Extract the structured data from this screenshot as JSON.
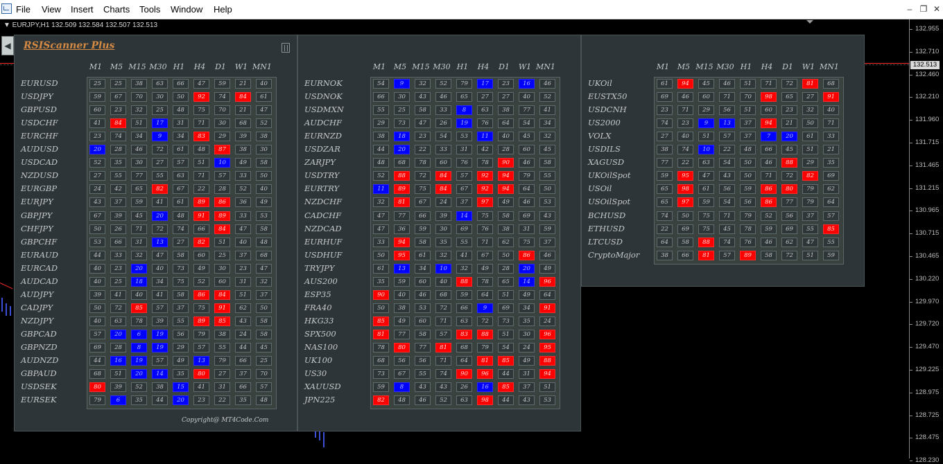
{
  "menu": {
    "items": [
      "File",
      "View",
      "Insert",
      "Charts",
      "Tools",
      "Window",
      "Help"
    ],
    "window_buttons": [
      "–",
      "❐",
      "✕"
    ]
  },
  "chart": {
    "header": "▼ EURJPY,H1  132.509 132.584 132.507 132.513",
    "current_price": "132.513",
    "price_labels": [
      "132.955",
      "132.710",
      "132.460",
      "132.210",
      "131.960",
      "131.715",
      "131.465",
      "131.215",
      "130.965",
      "130.715",
      "130.465",
      "130.220",
      "129.970",
      "129.720",
      "129.470",
      "129.225",
      "128.975",
      "128.725",
      "128.475",
      "128.230"
    ],
    "colors": {
      "background": "#000000",
      "candle": "#3d4fd6",
      "price_line": "#ff2a2a"
    }
  },
  "scanner": {
    "title": "RSIScanner Plus",
    "copyright": "Copyright@ MT4Code.Com",
    "timeframes": [
      "M1",
      "M5",
      "M15",
      "M30",
      "H1",
      "H4",
      "D1",
      "W1",
      "MN1"
    ],
    "colors": {
      "panel": "#2d3538",
      "overbought": "#ff0000",
      "oversold": "#0000ff",
      "text": "#c6c9c9",
      "title": "#d58a43"
    },
    "thresholds": {
      "overbought": 80,
      "oversold": 20
    },
    "panels": [
      {
        "rows": [
          {
            "symbol": "EURUSD",
            "values": [
              25,
              25,
              38,
              63,
              66,
              47,
              59,
              21,
              40
            ]
          },
          {
            "symbol": "USDJPY",
            "values": [
              59,
              67,
              70,
              30,
              50,
              92,
              74,
              84,
              61
            ]
          },
          {
            "symbol": "GBPUSD",
            "values": [
              60,
              23,
              32,
              25,
              48,
              75,
              70,
              21,
              47
            ]
          },
          {
            "symbol": "USDCHF",
            "values": [
              41,
              84,
              51,
              17,
              31,
              71,
              30,
              68,
              52
            ]
          },
          {
            "symbol": "EURCHF",
            "values": [
              23,
              74,
              34,
              9,
              34,
              83,
              29,
              39,
              38
            ]
          },
          {
            "symbol": "AUDUSD",
            "values": [
              20,
              28,
              46,
              72,
              61,
              48,
              87,
              38,
              30
            ]
          },
          {
            "symbol": "USDCAD",
            "values": [
              52,
              35,
              30,
              27,
              57,
              51,
              10,
              49,
              58
            ]
          },
          {
            "symbol": "NZDUSD",
            "values": [
              27,
              55,
              77,
              55,
              63,
              71,
              57,
              33,
              50
            ]
          },
          {
            "symbol": "EURGBP",
            "values": [
              24,
              42,
              65,
              82,
              67,
              22,
              28,
              52,
              40
            ]
          },
          {
            "symbol": "EURJPY",
            "values": [
              43,
              37,
              59,
              41,
              61,
              89,
              86,
              36,
              49
            ]
          },
          {
            "symbol": "GBPJPY",
            "values": [
              67,
              39,
              45,
              20,
              48,
              91,
              89,
              33,
              53
            ]
          },
          {
            "symbol": "CHFJPY",
            "values": [
              50,
              26,
              71,
              72,
              74,
              66,
              84,
              47,
              58
            ]
          },
          {
            "symbol": "GBPCHF",
            "values": [
              53,
              66,
              31,
              13,
              27,
              82,
              51,
              40,
              48
            ]
          },
          {
            "symbol": "EURAUD",
            "values": [
              44,
              33,
              32,
              47,
              58,
              60,
              25,
              37,
              68
            ]
          },
          {
            "symbol": "EURCAD",
            "values": [
              40,
              23,
              20,
              40,
              73,
              49,
              30,
              23,
              47
            ]
          },
          {
            "symbol": "AUDCAD",
            "values": [
              40,
              25,
              18,
              34,
              75,
              52,
              60,
              31,
              32
            ]
          },
          {
            "symbol": "AUDJPY",
            "values": [
              39,
              41,
              40,
              41,
              58,
              86,
              84,
              51,
              37
            ]
          },
          {
            "symbol": "CADJPY",
            "values": [
              50,
              72,
              85,
              57,
              37,
              75,
              91,
              62,
              50
            ]
          },
          {
            "symbol": "NZDJPY",
            "values": [
              40,
              63,
              78,
              39,
              55,
              89,
              85,
              43,
              58
            ]
          },
          {
            "symbol": "GBPCAD",
            "values": [
              57,
              20,
              6,
              19,
              56,
              79,
              38,
              24,
              58
            ]
          },
          {
            "symbol": "GBPNZD",
            "values": [
              69,
              28,
              8,
              19,
              29,
              57,
              55,
              44,
              45
            ]
          },
          {
            "symbol": "AUDNZD",
            "values": [
              44,
              16,
              19,
              57,
              49,
              13,
              79,
              66,
              25
            ]
          },
          {
            "symbol": "GBPAUD",
            "values": [
              68,
              51,
              20,
              14,
              35,
              80,
              27,
              37,
              70
            ]
          },
          {
            "symbol": "USDSEK",
            "values": [
              80,
              39,
              52,
              38,
              15,
              41,
              31,
              66,
              57
            ]
          },
          {
            "symbol": "EURSEK",
            "values": [
              79,
              6,
              35,
              44,
              20,
              23,
              22,
              35,
              48
            ]
          }
        ]
      },
      {
        "rows": [
          {
            "symbol": "EURNOK",
            "values": [
              54,
              9,
              32,
              52,
              79,
              17,
              23,
              16,
              46
            ]
          },
          {
            "symbol": "USDNOK",
            "values": [
              66,
              30,
              43,
              46,
              65,
              27,
              27,
              40,
              52
            ]
          },
          {
            "symbol": "USDMXN",
            "values": [
              55,
              25,
              58,
              33,
              8,
              63,
              38,
              77,
              41
            ]
          },
          {
            "symbol": "AUDCHF",
            "values": [
              29,
              73,
              47,
              26,
              19,
              76,
              64,
              54,
              34
            ]
          },
          {
            "symbol": "EURNZD",
            "values": [
              38,
              18,
              23,
              54,
              53,
              11,
              40,
              45,
              32
            ]
          },
          {
            "symbol": "USDZAR",
            "values": [
              44,
              20,
              22,
              33,
              31,
              42,
              28,
              60,
              45
            ]
          },
          {
            "symbol": "ZARJPY",
            "values": [
              48,
              68,
              78,
              60,
              76,
              78,
              90,
              46,
              58
            ]
          },
          {
            "symbol": "USDTRY",
            "values": [
              52,
              88,
              72,
              84,
              57,
              92,
              94,
              79,
              55
            ]
          },
          {
            "symbol": "EURTRY",
            "values": [
              11,
              89,
              75,
              84,
              67,
              92,
              94,
              64,
              50
            ]
          },
          {
            "symbol": "NZDCHF",
            "values": [
              32,
              81,
              67,
              24,
              37,
              97,
              49,
              46,
              53
            ]
          },
          {
            "symbol": "CADCHF",
            "values": [
              47,
              77,
              66,
              39,
              14,
              75,
              58,
              69,
              43
            ]
          },
          {
            "symbol": "NZDCAD",
            "values": [
              47,
              36,
              59,
              30,
              69,
              76,
              38,
              31,
              59
            ]
          },
          {
            "symbol": "EURHUF",
            "values": [
              33,
              94,
              58,
              35,
              55,
              71,
              62,
              75,
              37
            ]
          },
          {
            "symbol": "USDHUF",
            "values": [
              50,
              95,
              61,
              32,
              41,
              67,
              50,
              86,
              46
            ]
          },
          {
            "symbol": "TRYJPY",
            "values": [
              61,
              13,
              34,
              10,
              32,
              49,
              28,
              20,
              49
            ]
          },
          {
            "symbol": "AUS200",
            "values": [
              35,
              59,
              60,
              40,
              88,
              78,
              65,
              14,
              96
            ]
          },
          {
            "symbol": "ESP35",
            "values": [
              90,
              40,
              46,
              68,
              59,
              64,
              51,
              49,
              64
            ]
          },
          {
            "symbol": "FRA40",
            "values": [
              50,
              38,
              53,
              72,
              66,
              9,
              69,
              34,
              91
            ]
          },
          {
            "symbol": "HKG33",
            "values": [
              85,
              49,
              60,
              71,
              63,
              72,
              73,
              35,
              24
            ]
          },
          {
            "symbol": "SPX500",
            "values": [
              81,
              77,
              58,
              57,
              83,
              88,
              51,
              30,
              96
            ]
          },
          {
            "symbol": "NAS100",
            "values": [
              78,
              80,
              77,
              81,
              68,
              79,
              54,
              24,
              95
            ]
          },
          {
            "symbol": "UK100",
            "values": [
              68,
              56,
              56,
              71,
              64,
              81,
              85,
              49,
              88
            ]
          },
          {
            "symbol": "US30",
            "values": [
              73,
              67,
              55,
              74,
              90,
              96,
              44,
              31,
              94
            ]
          },
          {
            "symbol": "XAUUSD",
            "values": [
              59,
              8,
              43,
              43,
              26,
              16,
              85,
              37,
              51
            ]
          },
          {
            "symbol": "JPN225",
            "values": [
              82,
              48,
              46,
              52,
              63,
              98,
              44,
              43,
              53
            ]
          }
        ]
      },
      {
        "rows": [
          {
            "symbol": "UKOil",
            "values": [
              61,
              94,
              45,
              46,
              51,
              71,
              72,
              81,
              68
            ]
          },
          {
            "symbol": "EUSTX50",
            "values": [
              69,
              46,
              60,
              71,
              70,
              98,
              65,
              27,
              91
            ]
          },
          {
            "symbol": "USDCNH",
            "values": [
              23,
              71,
              29,
              56,
              51,
              60,
              23,
              32,
              40
            ]
          },
          {
            "symbol": "US2000",
            "values": [
              74,
              23,
              9,
              13,
              37,
              94,
              21,
              50,
              71
            ]
          },
          {
            "symbol": "VOLX",
            "values": [
              27,
              40,
              51,
              57,
              37,
              7,
              20,
              61,
              33
            ]
          },
          {
            "symbol": "USDILS",
            "values": [
              38,
              74,
              10,
              22,
              48,
              66,
              45,
              51,
              21
            ]
          },
          {
            "symbol": "XAGUSD",
            "values": [
              77,
              22,
              63,
              54,
              50,
              46,
              88,
              29,
              35
            ]
          },
          {
            "symbol": "UKOilSpot",
            "values": [
              59,
              95,
              47,
              43,
              50,
              71,
              72,
              82,
              69
            ]
          },
          {
            "symbol": "USOil",
            "values": [
              65,
              98,
              61,
              56,
              59,
              86,
              80,
              79,
              62
            ]
          },
          {
            "symbol": "USOilSpot",
            "values": [
              65,
              97,
              59,
              54,
              56,
              86,
              77,
              79,
              64
            ]
          },
          {
            "symbol": "BCHUSD",
            "values": [
              74,
              50,
              75,
              71,
              79,
              52,
              56,
              37,
              57
            ]
          },
          {
            "symbol": "ETHUSD",
            "values": [
              22,
              69,
              75,
              45,
              78,
              59,
              69,
              55,
              85
            ]
          },
          {
            "symbol": "LTCUSD",
            "values": [
              64,
              58,
              88,
              74,
              76,
              46,
              62,
              47,
              55
            ]
          },
          {
            "symbol": "CryptoMajor",
            "values": [
              38,
              66,
              81,
              57,
              89,
              58,
              72,
              51,
              59
            ]
          }
        ]
      }
    ]
  }
}
